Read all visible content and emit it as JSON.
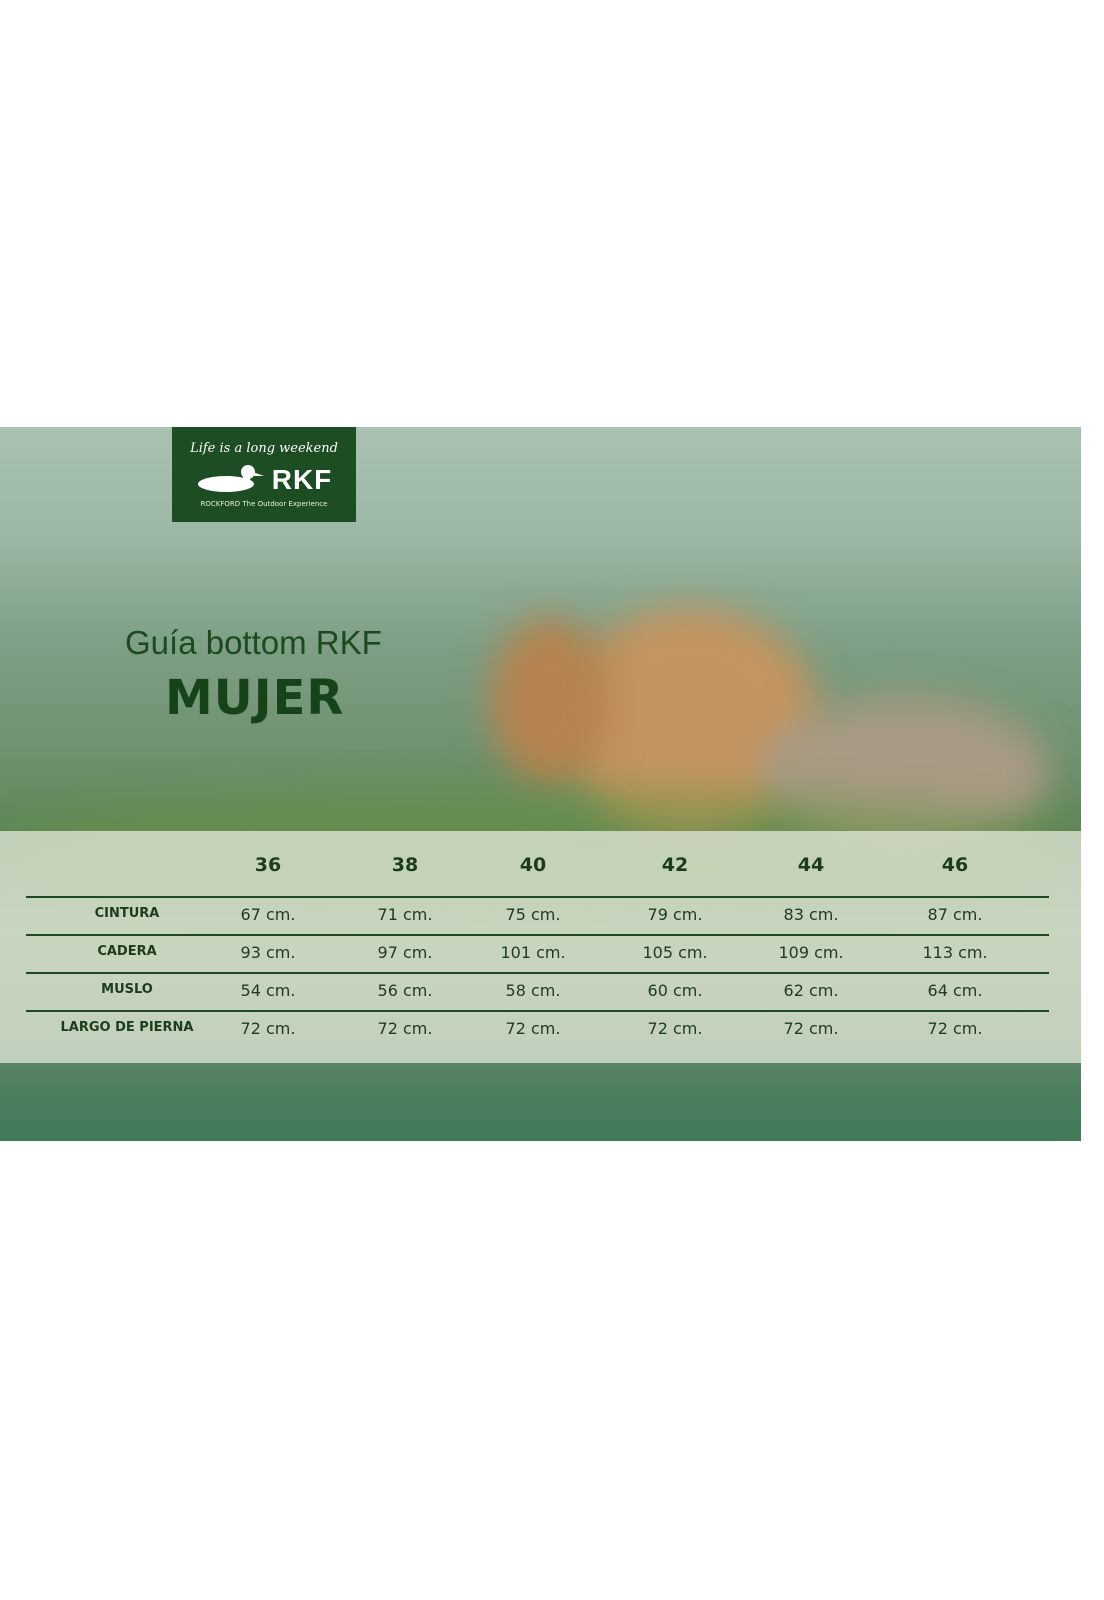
{
  "logo": {
    "tagline": "Life is a long weekend",
    "brand": "RKF",
    "subtitle": "ROCKFORD The Outdoor Experience",
    "icon": "duck-icon"
  },
  "heading": {
    "title": "Guía bottom RKF",
    "subtitle": "MUJER"
  },
  "colors": {
    "brand_green": "#1d4d22",
    "text_green": "#1c4a1e"
  },
  "table": {
    "sizes": [
      "36",
      "38",
      "40",
      "42",
      "44",
      "46"
    ],
    "rows": [
      {
        "label": "CINTURA",
        "values": [
          "67 cm.",
          "71 cm.",
          "75 cm.",
          "79 cm.",
          "83 cm.",
          "87 cm."
        ]
      },
      {
        "label": "CADERA",
        "values": [
          "93 cm.",
          "97 cm.",
          "101 cm.",
          "105 cm.",
          "109 cm.",
          "113 cm."
        ]
      },
      {
        "label": "MUSLO",
        "values": [
          "54 cm.",
          "56 cm.",
          "58 cm.",
          "60 cm.",
          "62 cm.",
          "64 cm."
        ]
      },
      {
        "label": "LARGO DE PIERNA",
        "values": [
          "72 cm.",
          "72 cm.",
          "72 cm.",
          "72 cm.",
          "72 cm.",
          "72 cm."
        ]
      }
    ]
  }
}
